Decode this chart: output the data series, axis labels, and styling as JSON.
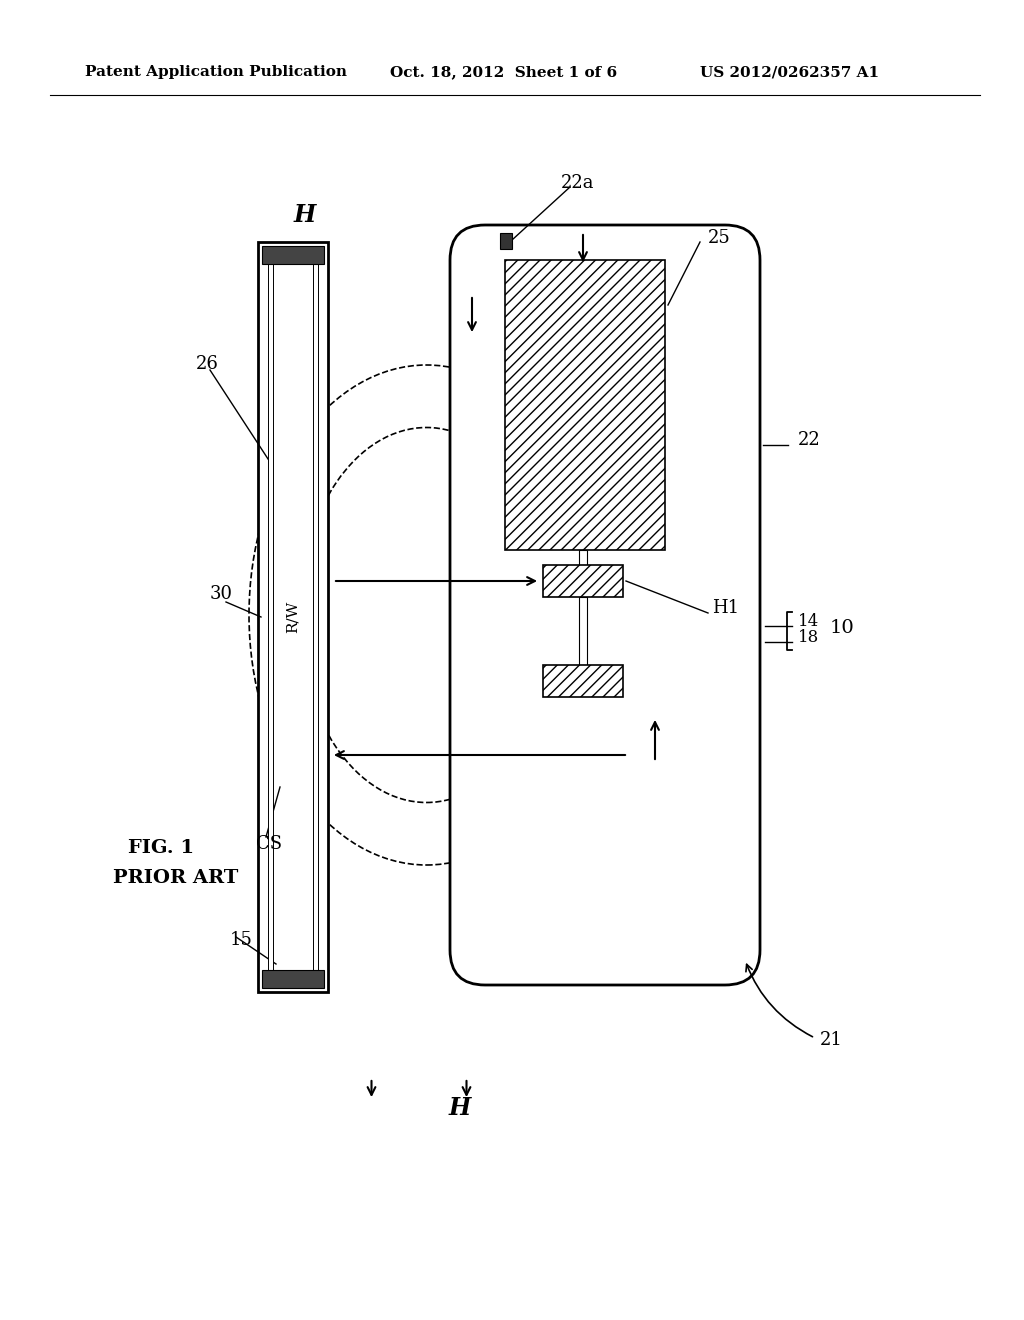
{
  "bg_color": "#ffffff",
  "header_left": "Patent Application Publication",
  "header_mid": "Oct. 18, 2012  Sheet 1 of 6",
  "header_right": "US 2012/0262357 A1",
  "fig_label": "FIG. 1",
  "fig_sublabel": "PRIOR ART",
  "labels": {
    "H_top": "H",
    "H_bottom": "H",
    "22a": "22a",
    "25": "25",
    "22": "22",
    "26": "26",
    "30": "30",
    "RW": "R/W",
    "CS": "CS",
    "15": "15",
    "H1": "H1",
    "14": "14",
    "18": "18",
    "10": "10",
    "21": "21"
  }
}
